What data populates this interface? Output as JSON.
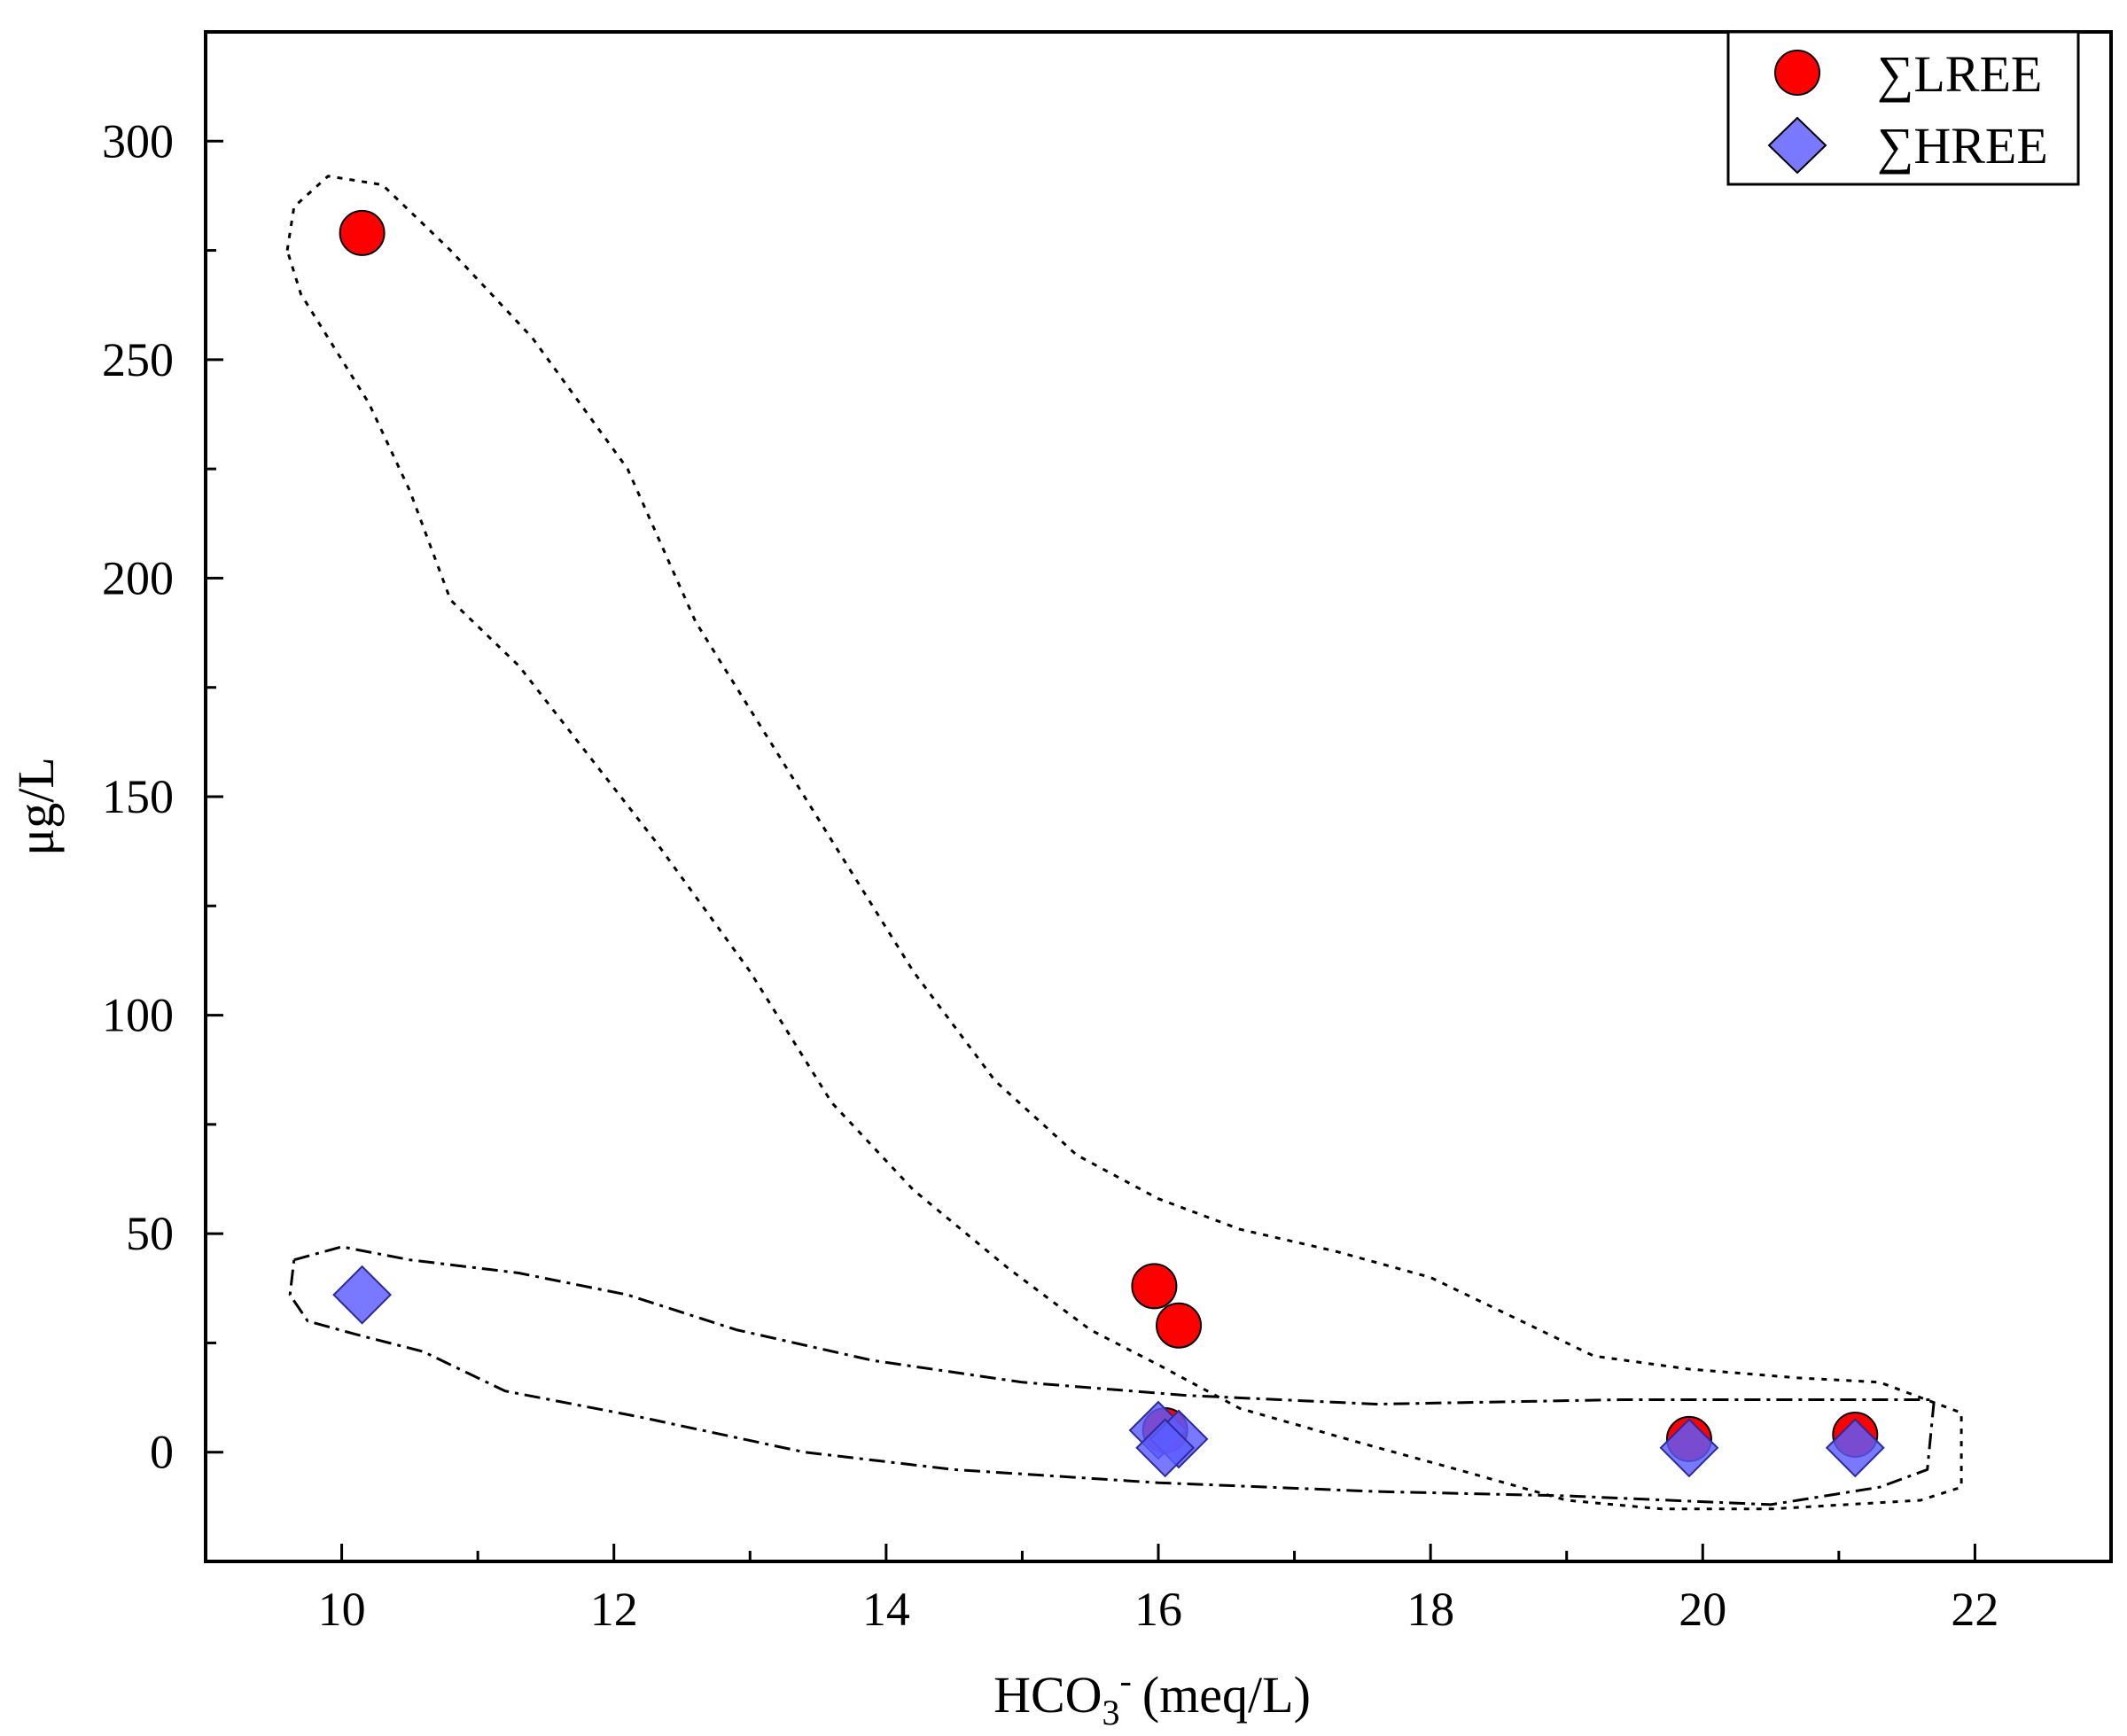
{
  "chart_data": {
    "type": "scatter",
    "xlabel": "HCO",
    "xlabel_sub": "3",
    "xlabel_sup": "-",
    "xlabel_unit": "(meq/L)",
    "ylabel": "μg/L",
    "xlim": [
      9,
      23
    ],
    "ylim": [
      -25,
      325
    ],
    "x_ticks": [
      10,
      12,
      14,
      16,
      18,
      20,
      22
    ],
    "x_tick_labels": [
      "10",
      "12",
      "14",
      "16",
      "18",
      "20",
      "22"
    ],
    "y_ticks": [
      0,
      50,
      100,
      150,
      200,
      250,
      300
    ],
    "y_tick_labels": [
      "0",
      "50",
      "100",
      "150",
      "200",
      "250",
      "300"
    ],
    "legend_position": "top-right",
    "grid": false,
    "series": [
      {
        "name": "∑LREE",
        "marker": "circle",
        "color": "#ff0000",
        "x": [
          10.15,
          15.97,
          16.15,
          16.05,
          19.9,
          21.12
        ],
        "y": [
          279,
          38,
          29,
          5,
          3,
          4
        ]
      },
      {
        "name": "∑HREE",
        "marker": "diamond",
        "color": "#5c5cff",
        "x": [
          10.15,
          16.0,
          16.15,
          16.05,
          19.9,
          21.12
        ],
        "y": [
          36,
          5,
          3,
          1,
          1,
          1
        ]
      }
    ],
    "annotations": [
      {
        "style": "dotted",
        "points": [
          [
            9.6,
            275
          ],
          [
            9.65,
            285
          ],
          [
            9.9,
            292
          ],
          [
            10.3,
            290
          ],
          [
            10.8,
            275
          ],
          [
            11.4,
            255
          ],
          [
            12.1,
            225
          ],
          [
            12.6,
            190
          ],
          [
            13.0,
            170
          ],
          [
            13.6,
            140
          ],
          [
            14.2,
            110
          ],
          [
            14.8,
            85
          ],
          [
            15.4,
            68
          ],
          [
            16.0,
            58
          ],
          [
            16.6,
            51
          ],
          [
            17.3,
            46
          ],
          [
            18.0,
            40
          ],
          [
            18.6,
            31
          ],
          [
            19.2,
            22
          ],
          [
            19.9,
            19
          ],
          [
            20.7,
            17
          ],
          [
            21.3,
            16
          ],
          [
            21.9,
            9
          ],
          [
            21.9,
            -8
          ],
          [
            21.6,
            -11
          ],
          [
            20.5,
            -13
          ],
          [
            19.7,
            -13
          ],
          [
            19.0,
            -11
          ],
          [
            18.2,
            -4
          ],
          [
            17.5,
            2
          ],
          [
            16.6,
            10
          ],
          [
            16.0,
            20
          ],
          [
            15.5,
            28
          ],
          [
            14.9,
            42
          ],
          [
            14.2,
            60
          ],
          [
            13.6,
            80
          ],
          [
            13.0,
            110
          ],
          [
            12.3,
            140
          ],
          [
            11.8,
            160
          ],
          [
            11.3,
            180
          ],
          [
            10.8,
            195
          ],
          [
            10.5,
            220
          ],
          [
            10.2,
            240
          ],
          [
            9.9,
            255
          ],
          [
            9.7,
            265
          ],
          [
            9.6,
            275
          ]
        ]
      },
      {
        "style": "dashdot",
        "points": [
          [
            9.65,
            44
          ],
          [
            10.0,
            47
          ],
          [
            10.5,
            44
          ],
          [
            11.3,
            41
          ],
          [
            12.1,
            36
          ],
          [
            12.9,
            28
          ],
          [
            13.9,
            21
          ],
          [
            15.0,
            16
          ],
          [
            16.2,
            13
          ],
          [
            17.6,
            11
          ],
          [
            19.4,
            12
          ],
          [
            20.8,
            12
          ],
          [
            21.7,
            12
          ],
          [
            21.65,
            -4
          ],
          [
            21.3,
            -8
          ],
          [
            20.5,
            -12
          ],
          [
            19.0,
            -10
          ],
          [
            17.6,
            -9
          ],
          [
            16.0,
            -7
          ],
          [
            14.5,
            -4
          ],
          [
            13.4,
            0
          ],
          [
            12.2,
            8
          ],
          [
            11.2,
            14
          ],
          [
            10.6,
            23
          ],
          [
            10.1,
            27
          ],
          [
            9.75,
            30
          ],
          [
            9.62,
            36
          ],
          [
            9.65,
            44
          ]
        ]
      }
    ]
  }
}
